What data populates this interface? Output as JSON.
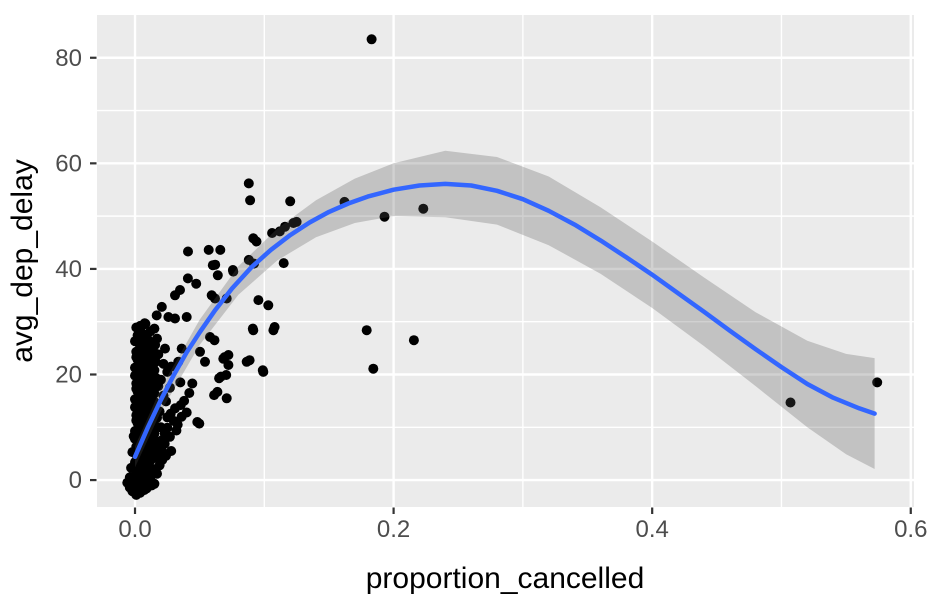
{
  "figure": {
    "background": "#FFFFFF",
    "panel_background": "#EBEBEB",
    "grid_color": "#FFFFFF",
    "point_color": "#000000",
    "smooth_line_color": "#3366FF",
    "ribbon_color": "rgba(85,85,85,0.27)",
    "tick_color": "#333333",
    "tick_label_color": "#4D4D4D",
    "axis_title_color": "#000000"
  },
  "chart_data": {
    "type": "scatter",
    "title": "",
    "xlabel": "proportion_cancelled",
    "ylabel": "avg_dep_delay",
    "xlim": [
      -0.0294,
      0.6025
    ],
    "ylim": [
      -5.1,
      88.1
    ],
    "grid": true,
    "legend_position": "none",
    "x_ticks": [
      {
        "v": 0.0,
        "label": "0.0"
      },
      {
        "v": 0.2,
        "label": "0.2"
      },
      {
        "v": 0.4,
        "label": "0.4"
      },
      {
        "v": 0.6,
        "label": "0.6"
      }
    ],
    "y_ticks": [
      {
        "v": 0,
        "label": "0"
      },
      {
        "v": 20,
        "label": "20"
      },
      {
        "v": 40,
        "label": "40"
      },
      {
        "v": 60,
        "label": "60"
      },
      {
        "v": 80,
        "label": "80"
      }
    ],
    "x_minor": [
      0.1,
      0.3,
      0.5
    ],
    "y_minor": [
      10,
      30,
      50,
      70
    ],
    "smooth_line": [
      [
        0.0,
        4.4
      ],
      [
        0.01,
        10.0
      ],
      [
        0.02,
        15.2
      ],
      [
        0.03,
        19.9
      ],
      [
        0.04,
        24.2
      ],
      [
        0.05,
        28.0
      ],
      [
        0.062,
        32.2
      ],
      [
        0.075,
        36.3
      ],
      [
        0.09,
        40.3
      ],
      [
        0.105,
        43.6
      ],
      [
        0.12,
        46.4
      ],
      [
        0.135,
        48.8
      ],
      [
        0.15,
        50.8
      ],
      [
        0.165,
        52.4
      ],
      [
        0.18,
        53.7
      ],
      [
        0.2,
        55.0
      ],
      [
        0.22,
        55.8
      ],
      [
        0.24,
        56.1
      ],
      [
        0.26,
        55.8
      ],
      [
        0.28,
        54.8
      ],
      [
        0.3,
        53.2
      ],
      [
        0.32,
        51.0
      ],
      [
        0.34,
        48.4
      ],
      [
        0.36,
        45.4
      ],
      [
        0.38,
        42.2
      ],
      [
        0.4,
        38.9
      ],
      [
        0.42,
        35.4
      ],
      [
        0.44,
        31.9
      ],
      [
        0.46,
        28.3
      ],
      [
        0.48,
        24.8
      ],
      [
        0.5,
        21.4
      ],
      [
        0.52,
        18.2
      ],
      [
        0.54,
        15.6
      ],
      [
        0.56,
        13.6
      ],
      [
        0.572,
        12.6
      ]
    ],
    "ribbon": [
      [
        0.0,
        2.4,
        6.4
      ],
      [
        0.02,
        13.0,
        17.4
      ],
      [
        0.05,
        25.6,
        30.4
      ],
      [
        0.08,
        35.1,
        40.5
      ],
      [
        0.11,
        41.6,
        47.6
      ],
      [
        0.14,
        46.0,
        53.0
      ],
      [
        0.17,
        48.7,
        57.1
      ],
      [
        0.2,
        50.0,
        60.0
      ],
      [
        0.24,
        49.8,
        62.4
      ],
      [
        0.28,
        48.4,
        61.2
      ],
      [
        0.32,
        44.5,
        57.5
      ],
      [
        0.36,
        39.1,
        51.7
      ],
      [
        0.4,
        32.6,
        45.2
      ],
      [
        0.44,
        25.4,
        38.4
      ],
      [
        0.48,
        17.8,
        31.8
      ],
      [
        0.52,
        10.0,
        26.4
      ],
      [
        0.55,
        4.9,
        23.9
      ],
      [
        0.572,
        2.1,
        23.1
      ]
    ],
    "points": [
      [
        0.183,
        83.5
      ],
      [
        0.507,
        14.7
      ],
      [
        0.574,
        18.5
      ],
      [
        0.088,
        56.2
      ],
      [
        0.089,
        53.0
      ],
      [
        0.12,
        52.8
      ],
      [
        0.125,
        48.9
      ],
      [
        0.162,
        52.7
      ],
      [
        0.193,
        49.9
      ],
      [
        0.223,
        51.4
      ],
      [
        0.1792,
        28.4
      ],
      [
        0.1843,
        21.1
      ],
      [
        0.2157,
        26.5
      ],
      [
        0.041,
        43.3
      ],
      [
        0.057,
        43.6
      ],
      [
        0.066,
        43.6
      ],
      [
        0.062,
        40.8
      ],
      [
        0.092,
        41.0
      ],
      [
        0.094,
        45.2
      ],
      [
        0.0915,
        45.8
      ],
      [
        0.106,
        46.8
      ],
      [
        0.112,
        47.1
      ],
      [
        0.116,
        48.0
      ],
      [
        0.1225,
        48.7
      ],
      [
        0.076,
        39.5
      ],
      [
        0.088,
        41.7
      ],
      [
        0.115,
        41.1
      ],
      [
        0.0602,
        40.7
      ],
      [
        0.064,
        38.8
      ],
      [
        0.0409,
        38.2
      ],
      [
        0.0473,
        37.2
      ],
      [
        0.0757,
        39.8
      ],
      [
        0.0348,
        36.0
      ],
      [
        0.0309,
        35.0
      ],
      [
        0.0207,
        32.8
      ],
      [
        0.0258,
        30.9
      ],
      [
        0.0168,
        31.2
      ],
      [
        0.0064,
        29.4
      ],
      [
        0.0309,
        30.6
      ],
      [
        0.04,
        30.9
      ],
      [
        0.0593,
        35.0
      ],
      [
        0.0709,
        34.4
      ],
      [
        0.0619,
        34.4
      ],
      [
        0.0954,
        34.1
      ],
      [
        0.1031,
        33.1
      ],
      [
        0.0911,
        28.7
      ],
      [
        0.108,
        29.0
      ],
      [
        0.0915,
        28.4
      ],
      [
        0.107,
        28.4
      ],
      [
        0.0075,
        29.7
      ],
      [
        0.009,
        25.9
      ],
      [
        0.0155,
        25.6
      ],
      [
        0.0232,
        24.9
      ],
      [
        0.0064,
        24.0
      ],
      [
        0.0361,
        24.9
      ],
      [
        0.0503,
        24.3
      ],
      [
        0.058,
        27.1
      ],
      [
        0.0335,
        22.4
      ],
      [
        0.0541,
        22.4
      ],
      [
        0.0683,
        23.0
      ],
      [
        0.0722,
        23.7
      ],
      [
        0.0722,
        21.8
      ],
      [
        0.0864,
        22.4
      ],
      [
        0.0992,
        20.5
      ],
      [
        0.0615,
        26.5
      ],
      [
        0.0886,
        22.7
      ],
      [
        0.0988,
        20.8
      ],
      [
        0.0693,
        23.3
      ],
      [
        0.0705,
        19.9
      ],
      [
        0.0709,
        15.5
      ],
      [
        0.0497,
        10.7
      ],
      [
        0.0664,
        19.6
      ],
      [
        0.0612,
        16.1
      ],
      [
        0.0443,
        18.3
      ],
      [
        0.0637,
        16.7
      ],
      [
        0.065,
        19.3
      ],
      [
        0.0482,
        11.0
      ],
      [
        0.0276,
        12.6
      ],
      [
        0.0353,
        14.2
      ],
      [
        0.001,
        -2.8
      ],
      [
        0.004,
        -2.4
      ],
      [
        0.007,
        -1.9
      ],
      [
        0.002,
        -1.5
      ],
      [
        0.005,
        -1.1
      ],
      [
        0.009,
        -1.6
      ],
      [
        0.0005,
        -0.6
      ],
      [
        0.003,
        -0.3
      ],
      [
        0.006,
        -0.8
      ],
      [
        0.01,
        -0.4
      ],
      [
        0.013,
        -1.0
      ],
      [
        -0.004,
        -1.4
      ],
      [
        -0.002,
        -2.1
      ],
      [
        -0.006,
        -0.5
      ],
      [
        0.012,
        0.0
      ],
      [
        0.015,
        -0.7
      ],
      [
        -0.004,
        0.5
      ],
      [
        0.0,
        0.8
      ],
      [
        0.003,
        0.4
      ],
      [
        0.006,
        1.1
      ],
      [
        0.009,
        0.6
      ],
      [
        0.012,
        1.4
      ],
      [
        0.001,
        1.8
      ],
      [
        0.004,
        2.2
      ],
      [
        0.007,
        1.9
      ],
      [
        0.01,
        2.6
      ],
      [
        0.014,
        2.1
      ],
      [
        0.017,
        1.2
      ],
      [
        0.002,
        2.9
      ],
      [
        0.005,
        3.0
      ],
      [
        -0.003,
        2.3
      ],
      [
        0.019,
        2.8
      ],
      [
        0.0,
        3.4
      ],
      [
        0.003,
        3.9
      ],
      [
        0.006,
        3.5
      ],
      [
        0.009,
        4.2
      ],
      [
        0.012,
        3.7
      ],
      [
        0.015,
        4.5
      ],
      [
        0.001,
        4.8
      ],
      [
        0.004,
        5.2
      ],
      [
        0.007,
        4.9
      ],
      [
        0.01,
        5.6
      ],
      [
        0.013,
        5.1
      ],
      [
        0.016,
        5.8
      ],
      [
        -0.002,
        5.3
      ],
      [
        0.018,
        4.0
      ],
      [
        0.002,
        5.9
      ],
      [
        0.021,
        5.4
      ],
      [
        0.001,
        6.3
      ],
      [
        0.004,
        6.8
      ],
      [
        0.007,
        6.4
      ],
      [
        0.01,
        7.1
      ],
      [
        0.013,
        6.6
      ],
      [
        0.016,
        7.4
      ],
      [
        0.0,
        7.8
      ],
      [
        0.003,
        8.2
      ],
      [
        0.006,
        7.9
      ],
      [
        0.009,
        8.6
      ],
      [
        0.012,
        8.1
      ],
      [
        0.015,
        8.8
      ],
      [
        -0.001,
        8.3
      ],
      [
        0.019,
        7.0
      ],
      [
        0.023,
        8.9
      ],
      [
        0.002,
        8.5
      ],
      [
        0.0,
        9.3
      ],
      [
        0.003,
        9.8
      ],
      [
        0.006,
        9.4
      ],
      [
        0.009,
        10.1
      ],
      [
        0.012,
        9.6
      ],
      [
        0.015,
        10.4
      ],
      [
        0.002,
        10.8
      ],
      [
        0.005,
        11.2
      ],
      [
        0.008,
        10.9
      ],
      [
        0.011,
        11.6
      ],
      [
        0.014,
        11.1
      ],
      [
        0.017,
        11.8
      ],
      [
        0.001,
        11.3
      ],
      [
        0.02,
        10.0
      ],
      [
        0.025,
        11.9
      ],
      [
        0.004,
        11.5
      ],
      [
        0.001,
        12.3
      ],
      [
        0.004,
        12.8
      ],
      [
        0.007,
        12.4
      ],
      [
        0.01,
        13.1
      ],
      [
        0.013,
        12.6
      ],
      [
        0.016,
        13.4
      ],
      [
        0.0,
        13.8
      ],
      [
        0.003,
        14.2
      ],
      [
        0.006,
        13.9
      ],
      [
        0.009,
        14.6
      ],
      [
        0.012,
        14.1
      ],
      [
        0.015,
        14.8
      ],
      [
        0.002,
        14.3
      ],
      [
        0.019,
        13.0
      ],
      [
        0.024,
        14.9
      ],
      [
        0.031,
        13.6
      ],
      [
        0.0,
        15.3
      ],
      [
        0.003,
        15.8
      ],
      [
        0.006,
        15.4
      ],
      [
        0.009,
        16.1
      ],
      [
        0.012,
        15.6
      ],
      [
        0.015,
        16.4
      ],
      [
        0.002,
        16.8
      ],
      [
        0.005,
        17.2
      ],
      [
        0.008,
        16.9
      ],
      [
        0.011,
        17.6
      ],
      [
        0.014,
        17.1
      ],
      [
        0.018,
        17.8
      ],
      [
        0.001,
        17.3
      ],
      [
        0.022,
        16.0
      ],
      [
        0.027,
        17.5
      ],
      [
        0.001,
        18.3
      ],
      [
        0.004,
        18.8
      ],
      [
        0.007,
        18.4
      ],
      [
        0.01,
        19.1
      ],
      [
        0.013,
        18.6
      ],
      [
        0.016,
        19.4
      ],
      [
        0.0,
        19.8
      ],
      [
        0.003,
        20.2
      ],
      [
        0.006,
        19.9
      ],
      [
        0.009,
        20.6
      ],
      [
        0.012,
        20.1
      ],
      [
        0.015,
        20.8
      ],
      [
        0.002,
        20.3
      ],
      [
        0.02,
        19.0
      ],
      [
        0.025,
        20.5
      ],
      [
        0.0,
        21.3
      ],
      [
        0.003,
        21.8
      ],
      [
        0.006,
        21.4
      ],
      [
        0.009,
        22.1
      ],
      [
        0.012,
        21.6
      ],
      [
        0.016,
        22.4
      ],
      [
        0.002,
        22.8
      ],
      [
        0.005,
        23.2
      ],
      [
        0.008,
        22.9
      ],
      [
        0.011,
        23.6
      ],
      [
        0.014,
        23.1
      ],
      [
        0.018,
        23.8
      ],
      [
        0.001,
        23.3
      ],
      [
        0.022,
        22.0
      ],
      [
        0.001,
        24.3
      ],
      [
        0.004,
        24.8
      ],
      [
        0.008,
        24.4
      ],
      [
        0.011,
        25.1
      ],
      [
        0.014,
        24.6
      ],
      [
        0.003,
        25.9
      ],
      [
        0.006,
        26.2
      ],
      [
        0.01,
        26.6
      ],
      [
        0.013,
        26.1
      ],
      [
        0.017,
        26.8
      ],
      [
        0.0,
        26.3
      ],
      [
        0.002,
        27.4
      ],
      [
        0.005,
        27.9
      ],
      [
        0.009,
        27.5
      ],
      [
        0.012,
        28.2
      ],
      [
        0.015,
        28.7
      ],
      [
        0.004,
        29.2
      ],
      [
        0.008,
        29.6
      ],
      [
        0.001,
        28.9
      ],
      [
        0.021,
        3.8
      ],
      [
        0.024,
        4.6
      ],
      [
        0.028,
        5.5
      ],
      [
        0.023,
        6.9
      ],
      [
        0.027,
        8.2
      ],
      [
        0.032,
        9.4
      ],
      [
        0.025,
        9.9
      ],
      [
        0.03,
        11.2
      ],
      [
        0.036,
        12.0
      ],
      [
        0.021,
        7.6
      ],
      [
        0.033,
        10.5
      ],
      [
        0.038,
        15.0
      ],
      [
        0.042,
        16.5
      ],
      [
        0.035,
        18.5
      ],
      [
        0.028,
        21.5
      ],
      [
        0.04,
        12.8
      ]
    ]
  }
}
